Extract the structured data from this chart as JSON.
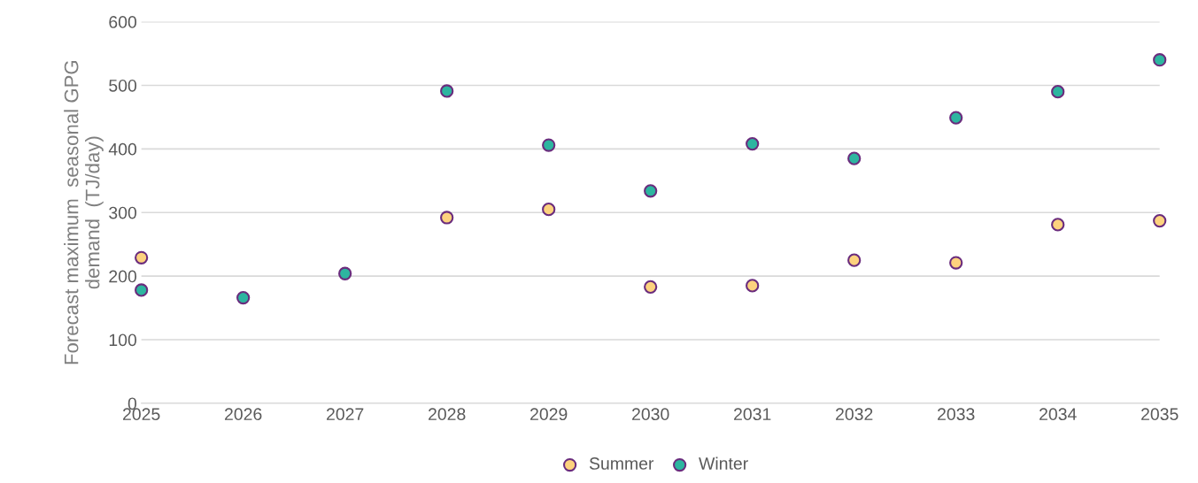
{
  "chart_data": {
    "type": "scatter",
    "ylabel": "Forecast maximum  seasonal GPG\ndemand  (TJ/day)",
    "x": [
      2025,
      2026,
      2027,
      2028,
      2029,
      2030,
      2031,
      2032,
      2033,
      2034,
      2035
    ],
    "series": [
      {
        "name": "Summer",
        "color": "#fdd27e",
        "values": [
          229,
          null,
          null,
          292,
          305,
          183,
          185,
          225,
          221,
          281,
          287
        ]
      },
      {
        "name": "Winter",
        "color": "#2db5a0",
        "values": [
          178,
          166,
          204,
          491,
          406,
          334,
          408,
          385,
          449,
          490,
          540
        ]
      }
    ],
    "xlim": [
      2025,
      2035
    ],
    "xticks": [
      2025,
      2026,
      2027,
      2028,
      2029,
      2030,
      2031,
      2032,
      2033,
      2034,
      2035
    ],
    "ylim": [
      0,
      600
    ],
    "yticks": [
      0,
      100,
      200,
      300,
      400,
      500,
      600
    ],
    "grid": "y",
    "legend": "bottom",
    "marker": "circle"
  }
}
